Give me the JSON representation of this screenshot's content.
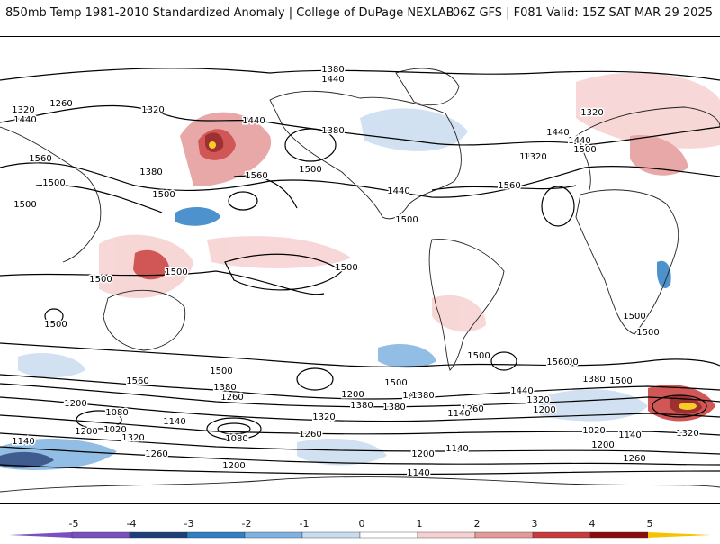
{
  "header": {
    "title": "850mb Temp 1981-2010 Standardized Anomaly | College of DuPage NEXLAB",
    "run_info": "06Z GFS | F081 Valid: 15Z SAT MAR 29 2025"
  },
  "legend": {
    "ticks": [
      "-5",
      "-4",
      "-3",
      "-2",
      "-1",
      "0",
      "1",
      "2",
      "3",
      "4",
      "5"
    ],
    "colors": [
      "#7a4fbf",
      "#1f3f7a",
      "#2e7fc4",
      "#7fb2e0",
      "#c9dcef",
      "#ffffff",
      "#f6d0d0",
      "#e59a9a",
      "#c93a3a",
      "#8c0c0c",
      "#f5c400"
    ]
  },
  "contour_labels": [
    "1380",
    "1440",
    "1320",
    "1260",
    "1320",
    "1440",
    "1560",
    "1380",
    "1500",
    "1500",
    "1440",
    "1560",
    "1380",
    "1320",
    "1440",
    "1500",
    "1440",
    "1380",
    "1560",
    "1440",
    "1500",
    "1320",
    "1500",
    "1500",
    "1500",
    "1500",
    "1500",
    "1500",
    "1500",
    "1500",
    "1500",
    "1500",
    "1560",
    "1500",
    "1440",
    "1380",
    "1320",
    "1260",
    "1200",
    "1560",
    "1500",
    "1380",
    "1260",
    "1200",
    "1080",
    "1020",
    "1200",
    "1140",
    "1320",
    "1260",
    "1140",
    "1080",
    "1200",
    "1440",
    "1380",
    "1200",
    "1500",
    "1440",
    "1380",
    "1320",
    "1260",
    "1200",
    "1140",
    "1020",
    "1140",
    "1200",
    "1260",
    "1320",
    "1500",
    "1260",
    "1200",
    "1140",
    "1560",
    "1500",
    "1380",
    "1320",
    "1140",
    "1200",
    "1260"
  ]
}
